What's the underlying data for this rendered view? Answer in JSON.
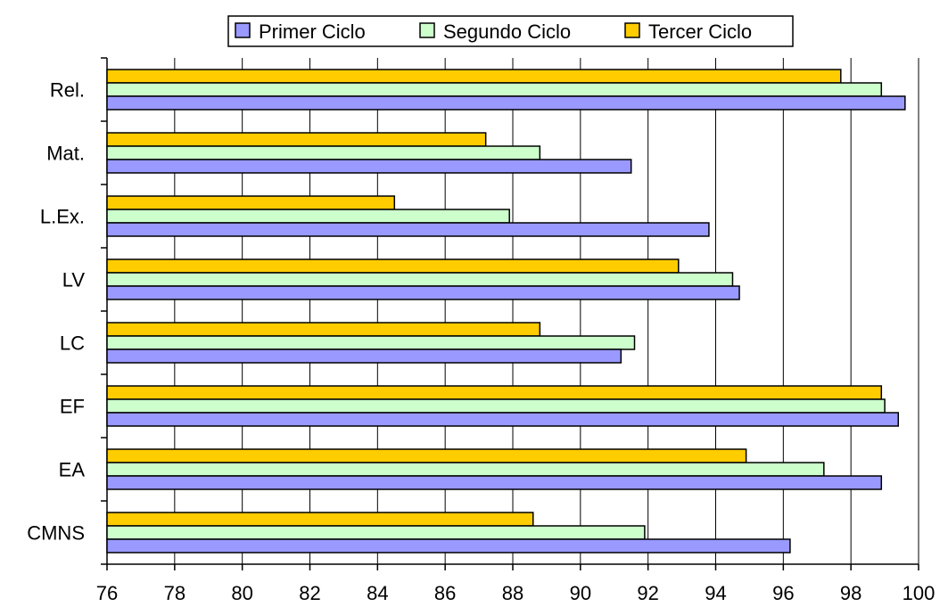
{
  "chart_data": {
    "type": "bar",
    "orientation": "horizontal",
    "title": "",
    "xlabel": "",
    "ylabel": "",
    "xlim": [
      76,
      100
    ],
    "x_ticks": [
      76,
      78,
      80,
      82,
      84,
      86,
      88,
      90,
      92,
      94,
      96,
      98,
      100
    ],
    "grid": "vertical gridlines on",
    "legend_position": "top",
    "categories": [
      "Rel.",
      "Mat.",
      "L.Ex.",
      "LV",
      "LC",
      "EF",
      "EA",
      "CMNS"
    ],
    "series": [
      {
        "name": "Primer Ciclo",
        "color": "#9999ff",
        "values": [
          99.6,
          91.5,
          93.8,
          94.7,
          91.2,
          99.4,
          98.9,
          96.2
        ]
      },
      {
        "name": "Segundo Ciclo",
        "color": "#ccffcc",
        "values": [
          98.9,
          88.8,
          87.9,
          94.5,
          91.6,
          99.0,
          97.2,
          91.9
        ]
      },
      {
        "name": "Tercer Ciclo",
        "color": "#ffcc00",
        "values": [
          97.7,
          87.2,
          84.5,
          92.9,
          88.8,
          98.9,
          94.9,
          88.6
        ]
      }
    ]
  }
}
